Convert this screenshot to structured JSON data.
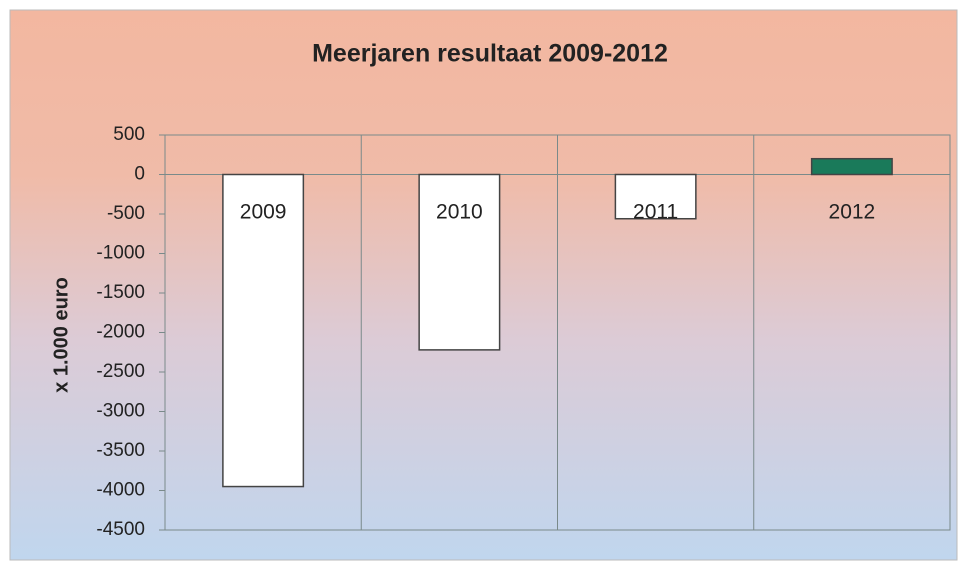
{
  "chart_data": {
    "type": "bar",
    "title": "Meerjaren resultaat 2009-2012",
    "y_label": "x 1.000 euro",
    "categories": [
      "2009",
      "2010",
      "2011",
      "2012"
    ],
    "values": [
      -3950,
      -2220,
      -560,
      200
    ],
    "colors": [
      "#ffffff",
      "#ffffff",
      "#ffffff",
      "#1a7a5a"
    ],
    "ylim": [
      -4500,
      500
    ],
    "yticks": [
      -4500,
      -4000,
      -3500,
      -3000,
      -2500,
      -2000,
      -1500,
      -1000,
      -500,
      0,
      500
    ],
    "grid": false
  }
}
